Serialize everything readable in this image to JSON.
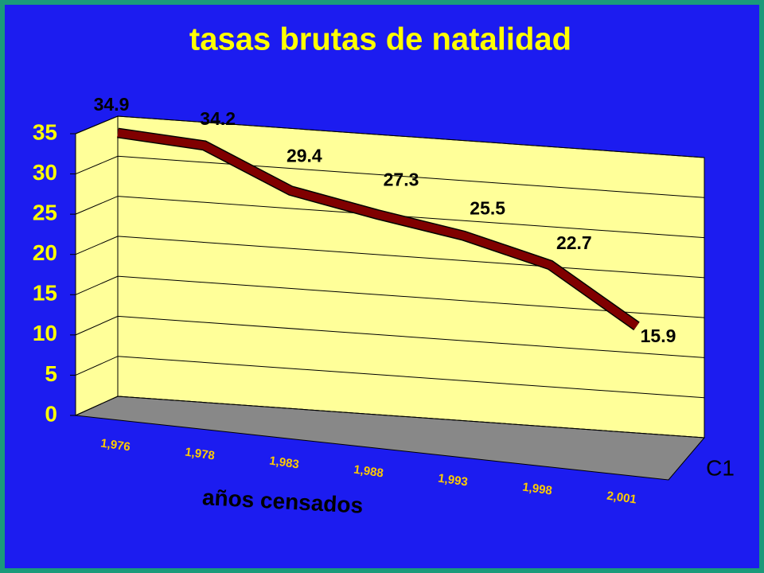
{
  "chart_data": {
    "type": "line3d",
    "title": "tasas brutas de natalidad",
    "x_label": "años censados",
    "categories": [
      "1,976",
      "1,978",
      "1,983",
      "1,988",
      "1,993",
      "1,998",
      "2,001"
    ],
    "series": [
      {
        "name": "C1",
        "color": "#800000",
        "values": [
          34.9,
          34.2,
          29.4,
          27.3,
          25.5,
          22.7,
          15.9
        ]
      }
    ],
    "ylim": [
      0,
      35
    ],
    "yticks": [
      0,
      5,
      10,
      15,
      20,
      25,
      30,
      35
    ],
    "grid": true
  }
}
